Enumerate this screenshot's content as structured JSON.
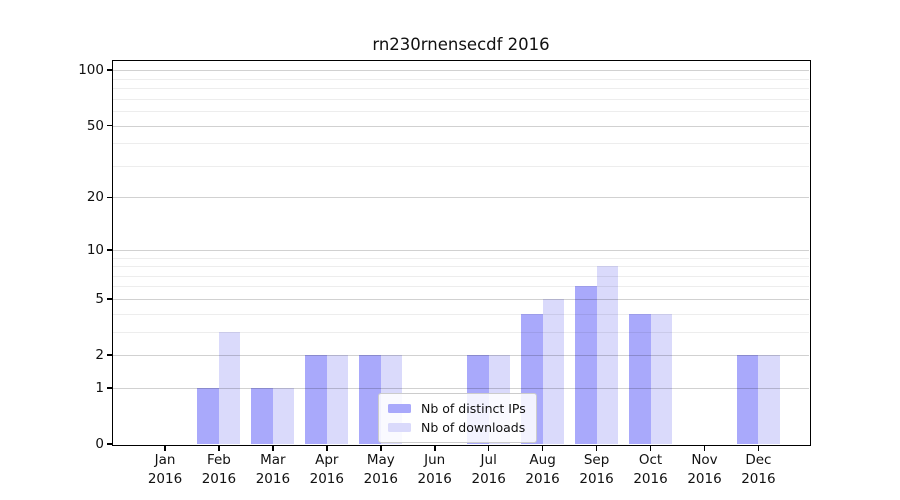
{
  "chart_data": {
    "type": "bar",
    "title": "rn230rnensecdf 2016",
    "categories": [
      "Jan",
      "Feb",
      "Mar",
      "Apr",
      "May",
      "Jun",
      "Jul",
      "Aug",
      "Sep",
      "Oct",
      "Nov",
      "Dec"
    ],
    "x_year_label": "2016",
    "series": [
      {
        "name": "Nb of distinct IPs",
        "color": "#a9a9fb",
        "values": [
          0,
          1,
          1,
          2,
          2,
          0,
          2,
          4,
          6,
          4,
          0,
          2
        ]
      },
      {
        "name": "Nb of downloads",
        "color": "#dadafb",
        "values": [
          0,
          3,
          1,
          2,
          2,
          0,
          2,
          5,
          8,
          4,
          0,
          2
        ]
      }
    ],
    "xlabel": "",
    "ylabel": "",
    "yscale": "log1p",
    "ylim": [
      0,
      112
    ],
    "yticks_major": [
      0,
      1,
      2,
      5,
      10,
      20,
      50,
      100
    ],
    "yticks_minor": [
      3,
      4,
      6,
      7,
      8,
      9,
      30,
      40,
      60,
      70,
      80,
      90
    ],
    "grid": true,
    "grid_on_top_of_bars": true,
    "legend_position": "lower center"
  }
}
